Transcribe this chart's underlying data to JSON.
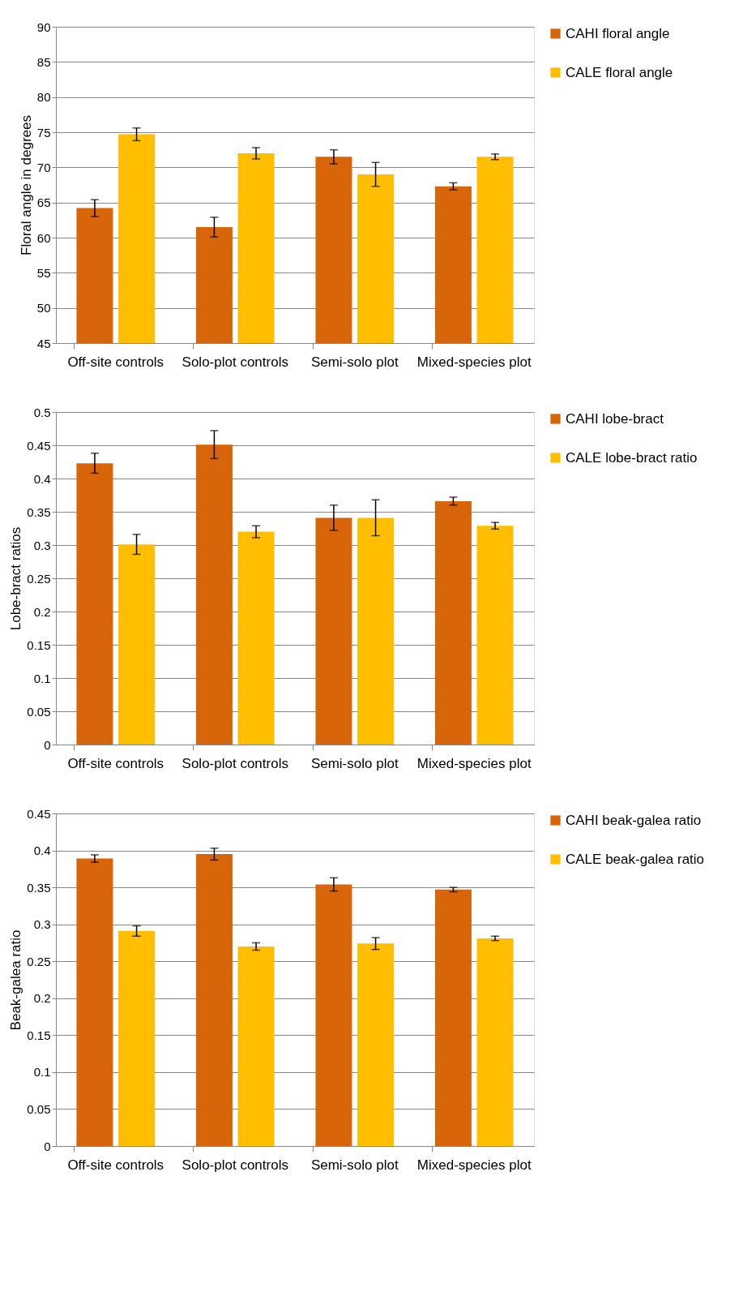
{
  "chart_data": [
    {
      "type": "bar",
      "ylabel": "Floral angle in degrees",
      "categories": [
        "Off-site controls",
        "Solo-plot controls",
        "Semi-solo plot",
        "Mixed-species plot"
      ],
      "ylim": [
        45,
        90
      ],
      "yticks": [
        45,
        50,
        55,
        60,
        65,
        70,
        75,
        80,
        85,
        90
      ],
      "grid": "y",
      "legend": "right",
      "series": [
        {
          "name": "CAHI floral angle",
          "color": "#d9650a",
          "values": [
            64.2,
            61.5,
            71.5,
            67.3
          ],
          "errors": [
            1.2,
            1.4,
            1.0,
            0.5
          ]
        },
        {
          "name": "CALE floral angle",
          "color": "#ffbf00",
          "values": [
            74.7,
            72.0,
            69.0,
            71.5
          ],
          "errors": [
            0.9,
            0.8,
            1.7,
            0.4
          ]
        }
      ]
    },
    {
      "type": "bar",
      "ylabel": "Lobe-bract ratios",
      "categories": [
        "Off-site controls",
        "Solo-plot controls",
        "Semi-solo plot",
        "Mixed-species plot"
      ],
      "ylim": [
        0,
        0.5
      ],
      "yticks": [
        0,
        0.05,
        0.1,
        0.15,
        0.2,
        0.25,
        0.3,
        0.35,
        0.4,
        0.45,
        0.5
      ],
      "grid": "y",
      "legend": "right",
      "series": [
        {
          "name": "CAHI lobe-bract",
          "color": "#d9650a",
          "values": [
            0.423,
            0.451,
            0.341,
            0.366
          ],
          "errors": [
            0.015,
            0.021,
            0.019,
            0.006
          ]
        },
        {
          "name": "CALE lobe-bract ratio",
          "color": "#ffbf00",
          "values": [
            0.301,
            0.32,
            0.341,
            0.329
          ],
          "errors": [
            0.015,
            0.009,
            0.027,
            0.005
          ]
        }
      ]
    },
    {
      "type": "bar",
      "ylabel": "Beak-galea ratio",
      "categories": [
        "Off-site controls",
        "Solo-plot controls",
        "Semi-solo plot",
        "Mixed-species plot"
      ],
      "ylim": [
        0,
        0.45
      ],
      "yticks": [
        0,
        0.05,
        0.1,
        0.15,
        0.2,
        0.25,
        0.3,
        0.35,
        0.4,
        0.45
      ],
      "grid": "y",
      "legend": "right",
      "series": [
        {
          "name": "CAHI beak-galea ratio",
          "color": "#d9650a",
          "values": [
            0.389,
            0.395,
            0.354,
            0.347
          ],
          "errors": [
            0.005,
            0.008,
            0.009,
            0.003
          ]
        },
        {
          "name": "CALE beak-galea ratio",
          "color": "#ffbf00",
          "values": [
            0.291,
            0.27,
            0.274,
            0.281
          ],
          "errors": [
            0.007,
            0.005,
            0.008,
            0.003
          ]
        }
      ]
    }
  ]
}
